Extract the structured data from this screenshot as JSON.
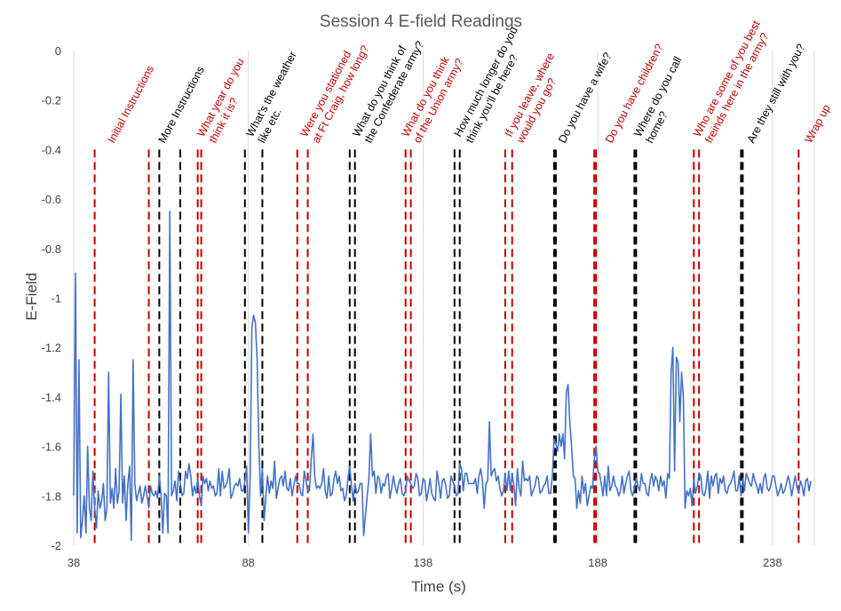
{
  "chart_data": {
    "type": "line",
    "title": "Session 4 E-field Readings",
    "xlabel": "Time (s)",
    "ylabel": "E-Field",
    "xlim": [
      38,
      250
    ],
    "ylim": [
      -2,
      0
    ],
    "x_ticks": [
      38,
      88,
      138,
      188,
      238
    ],
    "x_tick_labels": [
      "38",
      "88",
      "138",
      "188",
      "238"
    ],
    "y_ticks": [
      0,
      -0.2,
      -0.4,
      -0.6,
      -0.8,
      -1,
      -1.2,
      -1.4,
      -1.6,
      -1.8,
      -2
    ],
    "y_tick_labels": [
      "0",
      "-0.2",
      "-0.4",
      "-0.6",
      "-0.8",
      "-1",
      "-1.2",
      "-1.4",
      "-1.6",
      "-1.8",
      "-2"
    ],
    "grid": "vertical",
    "colors": {
      "series": "#4472c4",
      "red_marker": "#c00000",
      "black_marker": "#000000"
    },
    "series": [
      {
        "x": [
          38,
          38.5,
          39,
          39.5,
          40,
          40.5,
          41,
          41.5,
          42,
          42.5,
          43,
          43.5,
          44,
          44.5,
          45,
          45.5,
          46,
          46.5,
          47,
          47.5,
          48,
          48.5,
          49,
          49.5,
          50,
          50.5,
          51,
          51.5,
          52,
          52.5,
          53,
          53.5,
          54,
          54.5,
          55,
          55.5,
          56,
          56.5,
          57,
          57.5,
          58,
          58.5,
          59,
          59.5,
          60,
          60.5,
          61,
          61.5,
          62,
          62.5,
          63,
          63.5,
          64,
          64.5,
          65,
          65.5,
          66,
          66.5,
          67,
          67.5,
          68,
          68.5,
          69,
          69.5,
          70,
          70.5,
          71,
          71.5,
          72,
          72.5,
          73,
          73.5,
          74,
          74.5,
          75,
          75.5,
          76,
          76.5,
          77,
          77.5,
          78,
          78.5,
          79,
          79.5,
          80,
          80.5,
          81,
          81.5,
          82,
          82.5,
          83,
          83.5,
          84,
          84.5,
          85,
          85.5,
          86,
          86.5,
          87,
          87.5,
          88,
          88.5,
          89,
          89.5,
          90,
          90.5,
          91,
          91.5,
          92,
          92.5,
          93,
          93.5,
          94,
          94.5,
          95,
          95.5,
          96,
          96.5,
          97,
          97.5,
          98,
          98.5,
          99,
          99.5,
          100,
          100.5,
          101,
          101.5,
          102,
          102.5,
          103,
          103.5,
          104,
          104.5,
          105,
          105.5,
          106,
          106.5,
          107,
          107.5,
          108,
          108.5,
          109,
          109.5,
          110,
          110.5,
          111,
          111.5,
          112,
          112.5,
          113,
          113.5,
          114,
          114.5,
          115,
          115.5,
          116,
          116.5,
          117,
          117.5,
          118,
          118.5,
          119,
          119.5,
          120,
          120.5,
          121,
          121.5,
          122,
          122.5,
          123,
          123.5,
          124,
          124.5,
          125,
          125.5,
          126,
          126.5,
          127,
          127.5,
          128,
          128.5,
          129,
          129.5,
          130,
          130.5,
          131,
          131.5,
          132,
          132.5,
          133,
          133.5,
          134,
          134.5,
          135,
          135.5,
          136,
          136.5,
          137,
          137.5,
          138,
          138.5,
          139,
          139.5,
          140,
          140.5,
          141,
          141.5,
          142,
          142.5,
          143,
          143.5,
          144,
          144.5,
          145,
          145.5,
          146,
          146.5,
          147,
          147.5,
          148,
          148.5,
          149,
          149.5,
          150,
          150.5,
          151,
          151.5,
          152,
          152.5,
          153,
          153.5,
          154,
          154.5,
          155,
          155.5,
          156,
          156.5,
          157,
          157.5,
          158,
          158.5,
          159,
          159.5,
          160,
          160.5,
          161,
          161.5,
          162,
          162.5,
          163,
          163.5,
          164,
          164.5,
          165,
          165.5,
          166,
          166.5,
          167,
          167.5,
          168,
          168.5,
          169,
          169.5,
          170,
          170.5,
          171,
          171.5,
          172,
          172.5,
          173,
          173.5,
          174,
          174.5,
          175,
          175.5,
          176,
          176.5,
          177,
          177.5,
          178,
          178.5,
          179,
          179.5,
          180,
          180.5,
          181,
          181.5,
          182,
          182.5,
          183,
          183.5,
          184,
          184.5,
          185,
          185.5,
          186,
          186.5,
          187,
          187.5,
          188,
          188.5,
          189,
          189.5,
          190,
          190.5,
          191,
          191.5,
          192,
          192.5,
          193,
          193.5,
          194,
          194.5,
          195,
          195.5,
          196,
          196.5,
          197,
          197.5,
          198,
          198.5,
          199,
          199.5,
          200,
          200.5,
          201,
          201.5,
          202,
          202.5,
          203,
          203.5,
          204,
          204.5,
          205,
          205.5,
          206,
          206.5,
          207,
          207.5,
          208,
          208.5,
          209,
          209.5,
          210,
          210.5,
          211,
          211.5,
          212,
          212.5,
          213,
          213.5,
          214,
          214.5,
          215,
          215.5,
          216,
          216.5,
          217,
          217.5,
          218,
          218.5,
          219,
          219.5,
          220,
          220.5,
          221,
          221.5,
          222,
          222.5,
          223,
          223.5,
          224,
          224.5,
          225,
          225.5,
          226,
          226.5,
          227,
          227.5,
          228,
          228.5,
          229,
          229.5,
          230,
          230.5,
          231,
          231.5,
          232,
          232.5,
          233,
          233.5,
          234,
          234.5,
          235,
          235.5,
          236,
          236.5,
          237,
          237.5,
          238,
          238.5,
          239,
          239.5,
          240,
          240.5,
          241,
          241.5,
          242,
          242.5,
          243,
          243.5,
          244,
          244.5,
          245,
          245.5,
          246,
          246.5,
          247,
          247.5,
          248,
          248.5,
          249
        ],
        "values": [
          -1.8,
          -0.9,
          -1.95,
          -1.25,
          -1.97,
          -1.9,
          -1.8,
          -1.95,
          -1.6,
          -1.85,
          -1.9,
          -1.7,
          -1.85,
          -1.93,
          -1.78,
          -1.85,
          -1.82,
          -1.75,
          -1.9,
          -1.85,
          -1.3,
          -1.83,
          -1.77,
          -1.85,
          -1.69,
          -1.83,
          -1.78,
          -1.39,
          -1.83,
          -1.72,
          -1.9,
          -1.75,
          -1.68,
          -1.98,
          -1.25,
          -1.75,
          -1.82,
          -1.79,
          -1.76,
          -1.83,
          -1.8,
          -1.76,
          -1.8,
          -1.85,
          -1.76,
          -1.79,
          -1.8,
          -1.78,
          -1.81,
          -1.72,
          -1.79,
          -1.95,
          -1.79,
          -1.8,
          -1.95,
          -0.65,
          -1.8,
          -1.78,
          -1.74,
          -1.82,
          -1.7,
          -1.75,
          -1.8,
          -1.79,
          -1.7,
          -1.73,
          -1.67,
          -1.72,
          -1.8,
          -1.76,
          -1.79,
          -1.73,
          -1.8,
          -1.84,
          -1.72,
          -1.75,
          -1.73,
          -1.78,
          -1.74,
          -1.77,
          -1.76,
          -1.8,
          -1.79,
          -1.69,
          -1.8,
          -1.7,
          -1.77,
          -1.76,
          -1.74,
          -1.69,
          -1.81,
          -1.79,
          -1.76,
          -1.75,
          -1.76,
          -1.73,
          -1.78,
          -1.78,
          -1.74,
          -1.68,
          -1.95,
          -1.72,
          -1.12,
          -1.07,
          -1.1,
          -1.25,
          -1.6,
          -1.8,
          -1.69,
          -1.9,
          -1.8,
          -1.72,
          -1.79,
          -1.74,
          -1.77,
          -1.66,
          -1.81,
          -1.77,
          -1.73,
          -1.72,
          -1.76,
          -1.7,
          -1.77,
          -1.78,
          -1.73,
          -1.8,
          -1.76,
          -1.72,
          -1.75,
          -1.75,
          -1.79,
          -1.8,
          -1.7,
          -1.74,
          -1.78,
          -1.78,
          -1.65,
          -1.55,
          -1.72,
          -1.77,
          -1.76,
          -1.77,
          -1.75,
          -1.69,
          -1.78,
          -1.81,
          -1.72,
          -1.8,
          -1.79,
          -1.73,
          -1.7,
          -1.75,
          -1.72,
          -1.78,
          -1.77,
          -1.82,
          -1.8,
          -1.73,
          -1.68,
          -1.76,
          -1.82,
          -1.75,
          -1.79,
          -1.78,
          -1.75,
          -1.75,
          -1.96,
          -1.88,
          -1.8,
          -1.73,
          -1.55,
          -1.72,
          -1.7,
          -1.79,
          -1.72,
          -1.73,
          -1.79,
          -1.75,
          -1.76,
          -1.72,
          -1.71,
          -1.81,
          -1.77,
          -1.72,
          -1.76,
          -1.79,
          -1.75,
          -1.73,
          -1.79,
          -1.8,
          -1.78,
          -1.72,
          -1.74,
          -1.75,
          -1.77,
          -1.76,
          -1.71,
          -1.73,
          -1.8,
          -1.79,
          -1.73,
          -1.74,
          -1.82,
          -1.78,
          -1.73,
          -1.79,
          -1.81,
          -1.82,
          -1.7,
          -1.75,
          -1.81,
          -1.74,
          -1.73,
          -1.76,
          -1.81,
          -1.8,
          -1.72,
          -1.74,
          -1.76,
          -1.8,
          -1.79,
          -1.67,
          -1.69,
          -1.78,
          -1.71,
          -1.71,
          -1.75,
          -1.75,
          -1.75,
          -1.75,
          -1.73,
          -1.79,
          -1.72,
          -1.69,
          -1.74,
          -1.85,
          -1.75,
          -1.74,
          -1.5,
          -1.72,
          -1.7,
          -1.69,
          -1.74,
          -1.72,
          -1.77,
          -1.8,
          -1.78,
          -1.71,
          -1.78,
          -1.7,
          -1.78,
          -1.71,
          -1.76,
          -1.84,
          -1.69,
          -1.77,
          -1.8,
          -1.66,
          -1.74,
          -1.73,
          -1.74,
          -1.72,
          -1.8,
          -1.78,
          -1.76,
          -1.72,
          -1.73,
          -1.79,
          -1.78,
          -1.76,
          -1.75,
          -1.72,
          -1.79,
          -1.79,
          -1.72,
          -1.57,
          -1.59,
          -1.62,
          -1.55,
          -1.6,
          -1.55,
          -1.65,
          -1.38,
          -1.35,
          -1.5,
          -1.6,
          -1.72,
          -1.73,
          -1.85,
          -1.78,
          -1.83,
          -1.72,
          -1.79,
          -1.75,
          -1.84,
          -1.8,
          -1.76,
          -1.77,
          -1.65,
          -1.6,
          -1.7,
          -1.71,
          -1.75,
          -1.8,
          -1.72,
          -1.8,
          -1.68,
          -1.78,
          -1.76,
          -1.72,
          -1.76,
          -1.77,
          -1.8,
          -1.78,
          -1.72,
          -1.79,
          -1.75,
          -1.72,
          -1.7,
          -1.78,
          -1.8,
          -1.77,
          -1.73,
          -1.76,
          -1.78,
          -1.71,
          -1.75,
          -1.75,
          -1.79,
          -1.8,
          -1.74,
          -1.71,
          -1.76,
          -1.72,
          -1.74,
          -1.78,
          -1.72,
          -1.76,
          -1.74,
          -1.81,
          -1.71,
          -1.73,
          -1.3,
          -1.2,
          -1.7,
          -1.24,
          -1.26,
          -1.5,
          -1.3,
          -1.4,
          -1.85,
          -1.78,
          -1.8,
          -1.77,
          -1.84,
          -1.73,
          -1.79,
          -1.76,
          -1.71,
          -1.72,
          -1.79,
          -1.8,
          -1.77,
          -1.7,
          -1.81,
          -1.72,
          -1.76,
          -1.72,
          -1.71,
          -1.79,
          -1.73,
          -1.75,
          -1.72,
          -1.78,
          -1.79,
          -1.76,
          -1.75,
          -1.73,
          -1.7,
          -1.78,
          -1.78,
          -1.72,
          -1.8,
          -1.73,
          -1.78,
          -1.71,
          -1.73,
          -1.75,
          -1.76,
          -1.71,
          -1.74,
          -1.76,
          -1.79,
          -1.75,
          -1.79,
          -1.73,
          -1.71,
          -1.77,
          -1.78,
          -1.76,
          -1.72,
          -1.72,
          -1.76,
          -1.8,
          -1.78,
          -1.75,
          -1.79,
          -1.78,
          -1.75,
          -1.72,
          -1.75,
          -1.8,
          -1.76,
          -1.72,
          -1.76,
          -1.79,
          -1.74,
          -1.76,
          -1.8,
          -1.74,
          -1.73,
          -1.78,
          -1.74
        ]
      }
    ],
    "markers": [
      {
        "x": 44,
        "color": "red"
      },
      {
        "x": 59.5,
        "color": "red"
      },
      {
        "x": 62.5,
        "color": "black"
      },
      {
        "x": 68.5,
        "color": "black"
      },
      {
        "x": 73.5,
        "color": "red"
      },
      {
        "x": 74.5,
        "color": "red"
      },
      {
        "x": 87,
        "color": "black"
      },
      {
        "x": 92,
        "color": "black"
      },
      {
        "x": 102,
        "color": "red"
      },
      {
        "x": 105,
        "color": "red"
      },
      {
        "x": 117,
        "color": "black"
      },
      {
        "x": 118.5,
        "color": "black"
      },
      {
        "x": 133,
        "color": "red"
      },
      {
        "x": 134.5,
        "color": "red"
      },
      {
        "x": 147,
        "color": "black"
      },
      {
        "x": 148.5,
        "color": "black"
      },
      {
        "x": 161.5,
        "color": "red"
      },
      {
        "x": 163.5,
        "color": "red"
      },
      {
        "x": 175.5,
        "color": "black"
      },
      {
        "x": 176,
        "color": "black"
      },
      {
        "x": 187,
        "color": "red"
      },
      {
        "x": 187.5,
        "color": "red"
      },
      {
        "x": 198.5,
        "color": "black"
      },
      {
        "x": 199,
        "color": "black"
      },
      {
        "x": 215.5,
        "color": "red"
      },
      {
        "x": 217,
        "color": "red"
      },
      {
        "x": 229,
        "color": "black"
      },
      {
        "x": 229.5,
        "color": "black"
      },
      {
        "x": 245.5,
        "color": "red"
      }
    ],
    "annotations": [
      {
        "text": "Initial Instructions",
        "lines": [
          "Initial Instructions"
        ],
        "x": 49.5,
        "color": "red"
      },
      {
        "text": "More Instructions",
        "lines": [
          "More Instructions"
        ],
        "x": 64,
        "color": "black"
      },
      {
        "text": "What year do you think it is?",
        "lines": [
          "What year do you",
          "think it is?"
        ],
        "x": 78.5,
        "color": "red"
      },
      {
        "text": "What's the weather like etc.",
        "lines": [
          "What's the weather",
          "like etc."
        ],
        "x": 92.5,
        "color": "black"
      },
      {
        "text": "Were you stationed at Ft Craig, how long?",
        "lines": [
          "Were you stationed",
          "at Ft Craig, how long?"
        ],
        "x": 108,
        "color": "red"
      },
      {
        "text": "What do you think of the Confederate army?",
        "lines": [
          "What do you think of",
          "the Confederate army?"
        ],
        "x": 123,
        "color": "black"
      },
      {
        "text": "What do you think of the Union army?",
        "lines": [
          "What do you think",
          "of the Union army?"
        ],
        "x": 137,
        "color": "red"
      },
      {
        "text": "How much longer do you think you'll be here?",
        "lines": [
          "How much longer do you",
          "think you'll be here?"
        ],
        "x": 152,
        "color": "black"
      },
      {
        "text": "If you leave, where would you go?",
        "lines": [
          "If you leave, where",
          "would you go?"
        ],
        "x": 166.5,
        "color": "red"
      },
      {
        "text": "Do you have a wife?",
        "lines": [
          "Do you have a wife?"
        ],
        "x": 178.5,
        "color": "black"
      },
      {
        "text": "Do you have children?",
        "lines": [
          "Do you have children?"
        ],
        "x": 192,
        "color": "red"
      },
      {
        "text": "Where do you call home?",
        "lines": [
          "Where do you call",
          "home?"
        ],
        "x": 203.5,
        "color": "black"
      },
      {
        "text": "Who are some of you best freinds here in the army?",
        "lines": [
          "Who are some of you best",
          "freinds here in the army?"
        ],
        "x": 220.5,
        "color": "red"
      },
      {
        "text": "Are they still with you?",
        "lines": [
          "Are they still with you?"
        ],
        "x": 232.5,
        "color": "black"
      },
      {
        "text": "Wrap up",
        "lines": [
          "Wrap up"
        ],
        "x": 249,
        "color": "red"
      }
    ]
  }
}
